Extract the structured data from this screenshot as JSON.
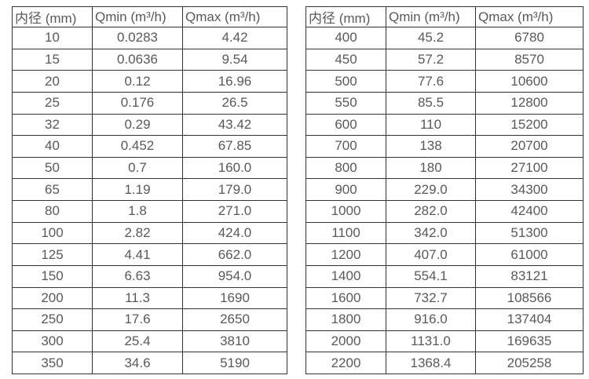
{
  "colors": {
    "background": "#ffffff",
    "border": "#333333",
    "text": "#595959"
  },
  "tables": [
    {
      "name": "flow-table-small-diameters",
      "headers": [
        "内径 (mm)",
        "Qmin (m³/h)",
        "Qmax (m³/h)"
      ],
      "rows": [
        [
          "10",
          "0.0283",
          "4.42"
        ],
        [
          "15",
          "0.0636",
          "9.54"
        ],
        [
          "20",
          "0.12",
          "16.96"
        ],
        [
          "25",
          "0.176",
          "26.5"
        ],
        [
          "32",
          "0.29",
          "43.42"
        ],
        [
          "40",
          "0.452",
          "67.85"
        ],
        [
          "50",
          "0.7",
          "160.0"
        ],
        [
          "65",
          "1.19",
          "179.0"
        ],
        [
          "80",
          "1.8",
          "271.0"
        ],
        [
          "100",
          "2.82",
          "424.0"
        ],
        [
          "125",
          "4.41",
          "662.0"
        ],
        [
          "150",
          "6.63",
          "954.0"
        ],
        [
          "200",
          "11.3",
          "1690"
        ],
        [
          "250",
          "17.6",
          "2650"
        ],
        [
          "300",
          "25.4",
          "3810"
        ],
        [
          "350",
          "34.6",
          "5190"
        ]
      ]
    },
    {
      "name": "flow-table-large-diameters",
      "headers": [
        "内径 (mm)",
        "Qmin (m³/h)",
        "Qmax (m³/h)"
      ],
      "rows": [
        [
          "400",
          "45.2",
          "6780"
        ],
        [
          "450",
          "57.2",
          "8570"
        ],
        [
          "500",
          "77.6",
          "10600"
        ],
        [
          "550",
          "85.5",
          "12800"
        ],
        [
          "600",
          "110",
          "15200"
        ],
        [
          "700",
          "138",
          "20700"
        ],
        [
          "800",
          "180",
          "27100"
        ],
        [
          "900",
          "229.0",
          "34300"
        ],
        [
          "1000",
          "282.0",
          "42400"
        ],
        [
          "1100",
          "342.0",
          "51300"
        ],
        [
          "1200",
          "407.0",
          "61000"
        ],
        [
          "1400",
          "554.1",
          "83121"
        ],
        [
          "1600",
          "732.7",
          "108566"
        ],
        [
          "1800",
          "916.0",
          "137404"
        ],
        [
          "2000",
          "1131.0",
          "169635"
        ],
        [
          "2200",
          "1368.4",
          "205258"
        ]
      ]
    }
  ]
}
